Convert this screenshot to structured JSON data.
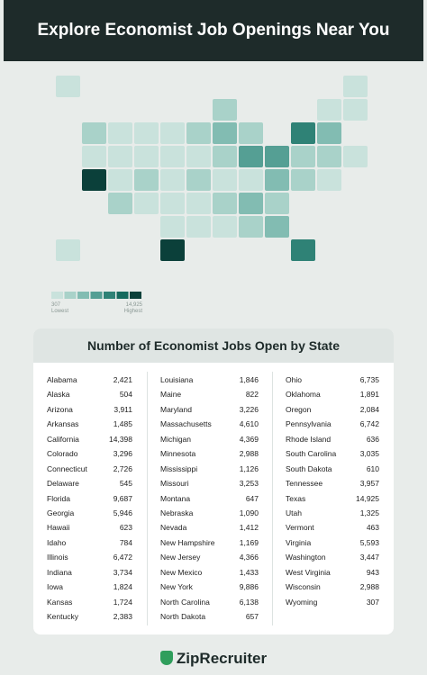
{
  "title": "Explore Economist Job Openings Near You",
  "legend": {
    "min": 307,
    "max": {
      "value": 14925,
      "label": "14,925"
    },
    "low_label": "Lowest",
    "high_label": "Highest",
    "colors": [
      "#c9e2dc",
      "#a9d2c9",
      "#82bcb2",
      "#559f94",
      "#2f8276",
      "#166a5e",
      "#0b403a"
    ]
  },
  "table": {
    "title": "Number of Economist Jobs Open by State",
    "states": [
      "Alabama",
      "Alaska",
      "Arizona",
      "Arkansas",
      "California",
      "Colorado",
      "Connecticut",
      "Delaware",
      "Florida",
      "Georgia",
      "Hawaii",
      "Idaho",
      "Illinois",
      "Indiana",
      "Iowa",
      "Kansas",
      "Kentucky",
      "Louisiana",
      "Maine",
      "Maryland",
      "Massachusetts",
      "Michigan",
      "Minnesota",
      "Mississippi",
      "Missouri",
      "Montana",
      "Nebraska",
      "Nevada",
      "New Hampshire",
      "New Jersey",
      "New Mexico",
      "New York",
      "North Carolina",
      "North Dakota",
      "Ohio",
      "Oklahoma",
      "Oregon",
      "Pennsylvania",
      "Rhode Island",
      "South Carolina",
      "South Dakota",
      "Tennessee",
      "Texas",
      "Utah",
      "Vermont",
      "Virginia",
      "Washington",
      "West Virginia",
      "Wisconsin",
      "Wyoming"
    ],
    "jobs": [
      2421,
      504,
      3911,
      1485,
      14398,
      3296,
      2726,
      545,
      9687,
      5946,
      623,
      784,
      6472,
      3734,
      1824,
      1724,
      2383,
      1846,
      822,
      3226,
      4610,
      4369,
      2988,
      1126,
      3253,
      647,
      1090,
      1412,
      1169,
      4366,
      1433,
      9886,
      6138,
      657,
      6735,
      1891,
      2084,
      6742,
      636,
      3035,
      610,
      3957,
      14925,
      1325,
      463,
      5593,
      3447,
      943,
      2988,
      307
    ],
    "jobs_labels": [
      "2,421",
      "504",
      "3,911",
      "1,485",
      "14,398",
      "3,296",
      "2,726",
      "545",
      "9,687",
      "5,946",
      "623",
      "784",
      "6,472",
      "3,734",
      "1,824",
      "1,724",
      "2,383",
      "1,846",
      "822",
      "3,226",
      "4,610",
      "4,369",
      "2,988",
      "1,126",
      "3,253",
      "647",
      "1,090",
      "1,412",
      "1,169",
      "4,366",
      "1,433",
      "9,886",
      "6,138",
      "657",
      "6,735",
      "1,891",
      "2,084",
      "6,742",
      "636",
      "3,035",
      "610",
      "3,957",
      "14,925",
      "1,325",
      "463",
      "5,593",
      "3,447",
      "943",
      "2,988",
      "307"
    ]
  },
  "footer": "ZipRecruiter"
}
